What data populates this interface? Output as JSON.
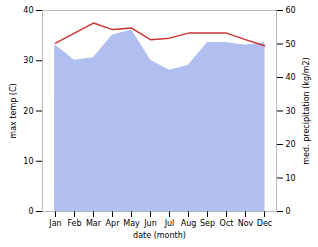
{
  "chart_data": {
    "type": "line",
    "categories": [
      "Jan",
      "Feb",
      "Mar",
      "Apr",
      "May",
      "Jun",
      "Jul",
      "Aug",
      "Sep",
      "Oct",
      "Nov",
      "Dec"
    ],
    "xlabel": "date (month)",
    "ylabel": "max temp (C)",
    "y2label": "med. precipitation (kg/m2)",
    "ylim": [
      0,
      40
    ],
    "yticks": [
      0,
      10,
      20,
      30,
      40
    ],
    "y2lim": [
      0,
      60
    ],
    "y2ticks": [
      0,
      10,
      20,
      30,
      40,
      50,
      60
    ],
    "series": [
      {
        "type": "area",
        "color": "#b0bef0",
        "values": [
          33.0,
          30.0,
          30.5,
          35.0,
          36.0,
          30.0,
          28.0,
          29.0,
          33.5,
          33.5,
          33.0,
          33.5
        ]
      },
      {
        "type": "line",
        "color": "#cc3333",
        "values": [
          33.5,
          35.5,
          37.5,
          36.2,
          36.5,
          34.2,
          34.5,
          35.5,
          35.5,
          35.5,
          34.2,
          33.0
        ]
      }
    ]
  }
}
